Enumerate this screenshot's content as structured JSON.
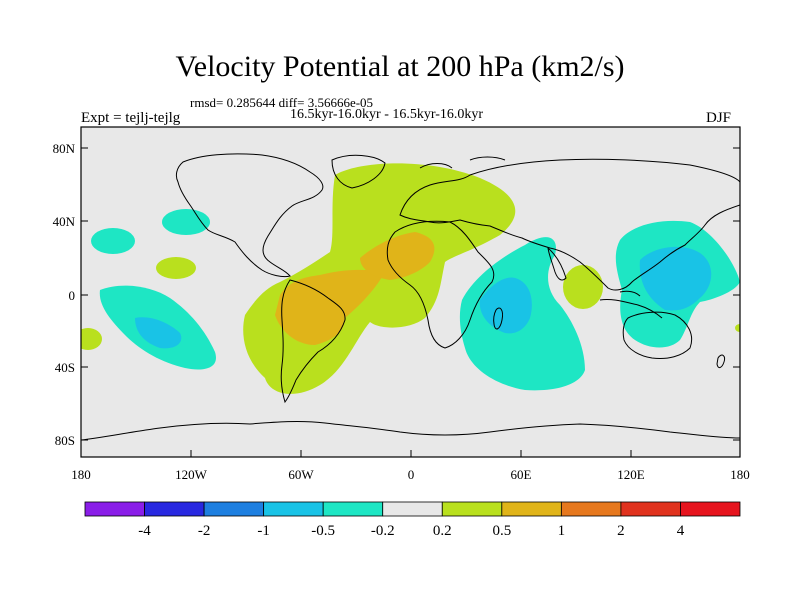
{
  "title": "Velocity Potential at 200 hPa (km2/s)",
  "stats": "rmsd= 0.285644 diff= 3.56666e-05",
  "subtitle": "16.5kyr-16.0kyr - 16.5kyr-16.0kyr",
  "experiment": "Expt = tejlj-tejlg",
  "season": "DJF",
  "lat_labels": [
    "80N",
    "40N",
    "0",
    "40S",
    "80S"
  ],
  "lon_labels": [
    "180",
    "120W",
    "60W",
    "0",
    "60E",
    "120E",
    "180"
  ],
  "colorbar": {
    "labels": [
      "-4",
      "-2",
      "-1",
      "-0.5",
      "-0.2",
      "0.2",
      "0.5",
      "1",
      "2",
      "4"
    ],
    "colors": [
      "#8a1ee8",
      "#2828e0",
      "#1e7fe0",
      "#19c3e6",
      "#1ee6c4",
      "#e8e8e8",
      "#b9e01e",
      "#e0b419",
      "#e6781e",
      "#e0321e",
      "#e6141e"
    ]
  },
  "fill_colors": {
    "background": "#e8e8e8",
    "neg_weak": "#1ee6c4",
    "neg_mid": "#19c3e6",
    "pos_weak": "#b9e01e",
    "pos_mid": "#e0b419"
  }
}
